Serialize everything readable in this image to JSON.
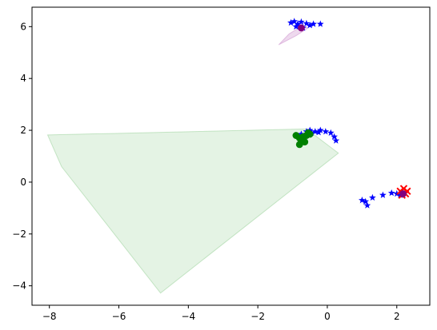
{
  "chart_data": {
    "type": "scatter",
    "title": "",
    "xlabel": "",
    "ylabel": "",
    "xlim": [
      -8.5,
      2.95
    ],
    "ylim": [
      -4.75,
      6.75
    ],
    "grid": false,
    "xticks": [
      -8,
      -6,
      -4,
      -2,
      0,
      2
    ],
    "yticks": [
      -4,
      -2,
      0,
      2,
      4,
      6
    ],
    "xtick_labels": [
      "−8",
      "−6",
      "−4",
      "−2",
      "0",
      "2"
    ],
    "ytick_labels": [
      "−4",
      "−2",
      "0",
      "2",
      "4",
      "6"
    ],
    "regions": [
      {
        "color": "#2ca02c",
        "opacity": 0.13,
        "polygon": [
          [
            -8.05,
            1.82
          ],
          [
            -0.6,
            2.05
          ],
          [
            0.32,
            1.12
          ],
          [
            -4.8,
            -4.28
          ],
          [
            -7.65,
            0.6
          ]
        ]
      },
      {
        "color": "#bb66bb",
        "opacity": 0.25,
        "polygon": [
          [
            -1.4,
            5.3
          ],
          [
            -1.1,
            5.72
          ],
          [
            -0.7,
            6.05
          ],
          [
            -0.55,
            5.95
          ],
          [
            -0.9,
            5.65
          ]
        ]
      },
      {
        "color": "#ff9999",
        "opacity": 0.25,
        "polygon": [
          [
            2.05,
            -0.35
          ],
          [
            2.15,
            -0.25
          ],
          [
            2.3,
            -0.4
          ],
          [
            2.2,
            -0.6
          ],
          [
            2.08,
            -0.55
          ]
        ]
      }
    ],
    "series": [
      {
        "marker": "star",
        "color": "#0000ff",
        "x": [
          -1.05,
          -0.95,
          -0.85,
          -0.75,
          -0.6,
          -0.5,
          -0.4,
          -0.2,
          -0.9,
          -0.7
        ],
        "y": [
          6.15,
          6.2,
          6.1,
          6.18,
          6.12,
          6.05,
          6.1,
          6.1,
          6.0,
          5.95
        ]
      },
      {
        "marker": "star",
        "color": "#0000ff",
        "x": [
          -0.75,
          -0.6,
          -0.5,
          -0.35,
          -0.2,
          -0.05,
          0.1,
          0.2,
          0.25,
          -0.45,
          -0.25
        ],
        "y": [
          1.85,
          1.95,
          2.0,
          1.95,
          2.0,
          1.95,
          1.9,
          1.75,
          1.6,
          1.9,
          1.92
        ]
      },
      {
        "marker": "star",
        "color": "#0000ff",
        "x": [
          1.0,
          1.1,
          1.3,
          1.6,
          1.85,
          2.0,
          2.1,
          1.15
        ],
        "y": [
          -0.7,
          -0.75,
          -0.6,
          -0.5,
          -0.42,
          -0.45,
          -0.5,
          -0.9
        ]
      },
      {
        "marker": "circle",
        "color": "#008000",
        "x": [
          -0.9,
          -0.8,
          -0.7,
          -0.6,
          -0.5,
          -0.75,
          -0.65,
          -0.8,
          -0.7,
          -0.55
        ],
        "y": [
          1.8,
          1.7,
          1.75,
          1.8,
          1.85,
          1.6,
          1.55,
          1.45,
          1.65,
          1.9
        ]
      },
      {
        "marker": "circle",
        "color": "#800080",
        "x": [
          -0.75
        ],
        "y": [
          5.95
        ]
      },
      {
        "marker": "x",
        "color": "#ff0000",
        "x": [
          2.1,
          2.2,
          2.25,
          2.15,
          2.3
        ],
        "y": [
          -0.35,
          -0.25,
          -0.45,
          -0.5,
          -0.35
        ]
      },
      {
        "marker": "circle",
        "color": "#800080",
        "x": [
          2.18
        ],
        "y": [
          -0.45
        ]
      }
    ]
  }
}
